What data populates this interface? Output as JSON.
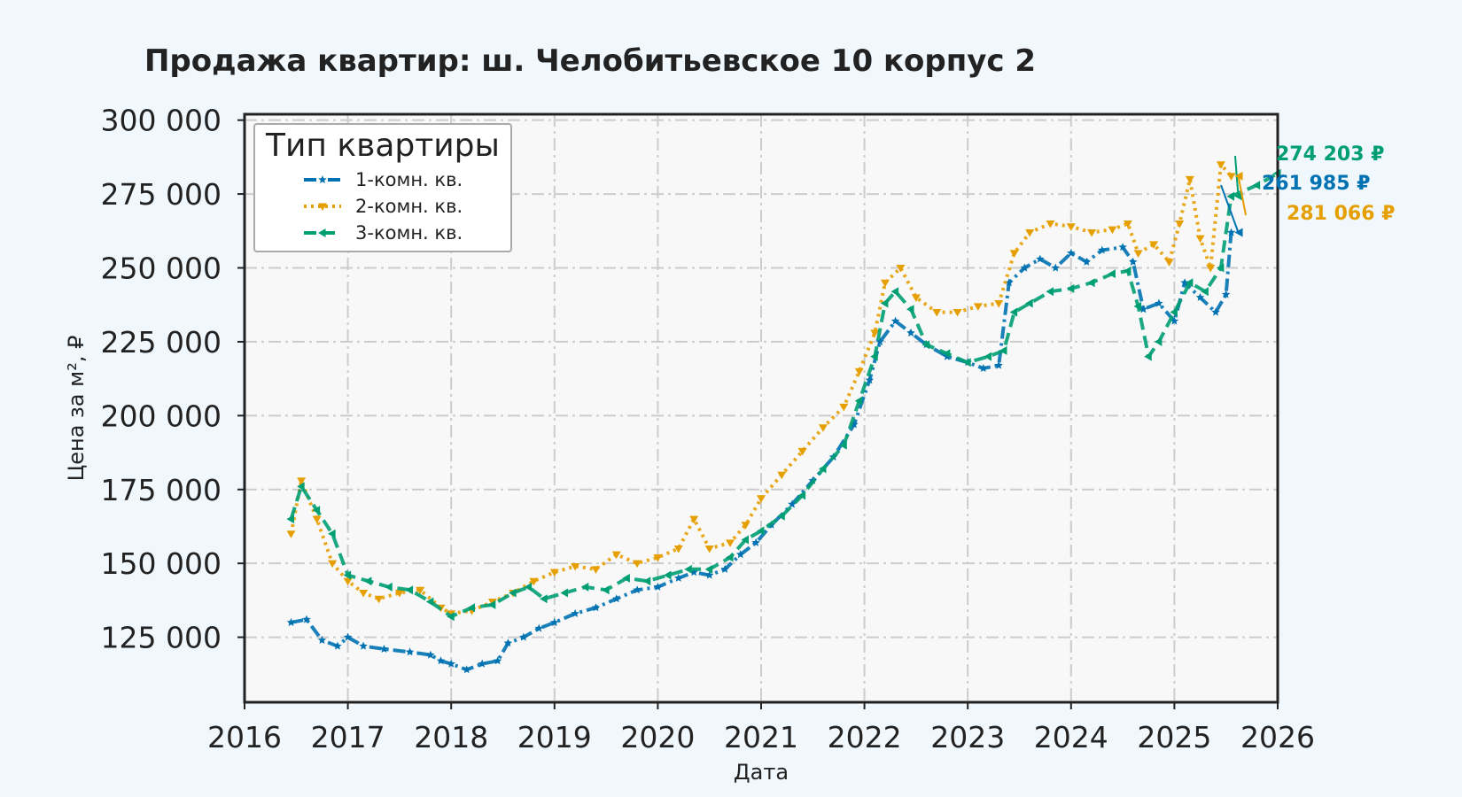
{
  "chart_data": {
    "type": "line",
    "title": "Продажа квартир: ш. Челобитьевское 10 корпус 2",
    "xlabel": "Дата",
    "ylabel": "Цена за м², ₽",
    "xlim": [
      2016.0,
      2026.0
    ],
    "ylim": [
      103000,
      302000
    ],
    "x_ticks": [
      "2016",
      "2017",
      "2018",
      "2019",
      "2020",
      "2021",
      "2022",
      "2023",
      "2024",
      "2025",
      "2026"
    ],
    "y_ticks": [
      "125 000",
      "150 000",
      "175 000",
      "200 000",
      "225 000",
      "250 000",
      "275 000",
      "300 000"
    ],
    "y_tick_values": [
      125000,
      150000,
      175000,
      200000,
      225000,
      250000,
      275000,
      300000
    ],
    "grid": true,
    "legend": {
      "title": "Тип квартиры",
      "position": "top-left"
    },
    "series": [
      {
        "name": "1-комн. кв.",
        "color": "#0072b2",
        "style": "dashdot",
        "marker": "star",
        "points": [
          [
            2016.45,
            130000
          ],
          [
            2016.6,
            131000
          ],
          [
            2016.75,
            124000
          ],
          [
            2016.9,
            122000
          ],
          [
            2017.0,
            125000
          ],
          [
            2017.15,
            122000
          ],
          [
            2017.35,
            121000
          ],
          [
            2017.6,
            120000
          ],
          [
            2017.8,
            119000
          ],
          [
            2017.9,
            117000
          ],
          [
            2018.0,
            116000
          ],
          [
            2018.15,
            114000
          ],
          [
            2018.3,
            116000
          ],
          [
            2018.45,
            117000
          ],
          [
            2018.55,
            123000
          ],
          [
            2018.7,
            125000
          ],
          [
            2018.85,
            128000
          ],
          [
            2019.0,
            130000
          ],
          [
            2019.2,
            133000
          ],
          [
            2019.4,
            135000
          ],
          [
            2019.6,
            138000
          ],
          [
            2019.8,
            141000
          ],
          [
            2020.0,
            142000
          ],
          [
            2020.2,
            145000
          ],
          [
            2020.35,
            147000
          ],
          [
            2020.5,
            146000
          ],
          [
            2020.65,
            148000
          ],
          [
            2020.8,
            153000
          ],
          [
            2020.95,
            157000
          ],
          [
            2021.1,
            163000
          ],
          [
            2021.3,
            170000
          ],
          [
            2021.5,
            178000
          ],
          [
            2021.7,
            186000
          ],
          [
            2021.9,
            197000
          ],
          [
            2022.05,
            212000
          ],
          [
            2022.15,
            225000
          ],
          [
            2022.3,
            232000
          ],
          [
            2022.45,
            228000
          ],
          [
            2022.6,
            224000
          ],
          [
            2022.8,
            220000
          ],
          [
            2023.0,
            218000
          ],
          [
            2023.15,
            216000
          ],
          [
            2023.3,
            217000
          ],
          [
            2023.4,
            245000
          ],
          [
            2023.55,
            250000
          ],
          [
            2023.7,
            253000
          ],
          [
            2023.85,
            250000
          ],
          [
            2024.0,
            255000
          ],
          [
            2024.15,
            252000
          ],
          [
            2024.3,
            256000
          ],
          [
            2024.5,
            257000
          ],
          [
            2024.6,
            252000
          ],
          [
            2024.7,
            236000
          ],
          [
            2024.85,
            238000
          ],
          [
            2025.0,
            232000
          ],
          [
            2025.1,
            245000
          ],
          [
            2025.25,
            240000
          ],
          [
            2025.4,
            235000
          ],
          [
            2025.5,
            241000
          ],
          [
            2025.55,
            261985
          ]
        ]
      },
      {
        "name": "2-комн. кв.",
        "color": "#e69f00",
        "style": "dotted",
        "marker": "triangle-down",
        "points": [
          [
            2016.45,
            160000
          ],
          [
            2016.55,
            178000
          ],
          [
            2016.7,
            165000
          ],
          [
            2016.85,
            150000
          ],
          [
            2017.0,
            144000
          ],
          [
            2017.15,
            140000
          ],
          [
            2017.3,
            138000
          ],
          [
            2017.5,
            140000
          ],
          [
            2017.7,
            141000
          ],
          [
            2017.9,
            135000
          ],
          [
            2018.0,
            133000
          ],
          [
            2018.2,
            134000
          ],
          [
            2018.4,
            137000
          ],
          [
            2018.6,
            140000
          ],
          [
            2018.8,
            144000
          ],
          [
            2019.0,
            147000
          ],
          [
            2019.2,
            149000
          ],
          [
            2019.4,
            148000
          ],
          [
            2019.6,
            153000
          ],
          [
            2019.8,
            150000
          ],
          [
            2020.0,
            152000
          ],
          [
            2020.2,
            155000
          ],
          [
            2020.35,
            165000
          ],
          [
            2020.5,
            155000
          ],
          [
            2020.7,
            157000
          ],
          [
            2020.85,
            163000
          ],
          [
            2021.0,
            172000
          ],
          [
            2021.2,
            180000
          ],
          [
            2021.4,
            188000
          ],
          [
            2021.6,
            196000
          ],
          [
            2021.8,
            203000
          ],
          [
            2021.95,
            215000
          ],
          [
            2022.1,
            228000
          ],
          [
            2022.2,
            245000
          ],
          [
            2022.35,
            250000
          ],
          [
            2022.5,
            240000
          ],
          [
            2022.7,
            235000
          ],
          [
            2022.9,
            235000
          ],
          [
            2023.1,
            237000
          ],
          [
            2023.3,
            238000
          ],
          [
            2023.45,
            255000
          ],
          [
            2023.6,
            262000
          ],
          [
            2023.8,
            265000
          ],
          [
            2024.0,
            264000
          ],
          [
            2024.2,
            262000
          ],
          [
            2024.4,
            263000
          ],
          [
            2024.55,
            265000
          ],
          [
            2024.65,
            255000
          ],
          [
            2024.8,
            258000
          ],
          [
            2024.95,
            252000
          ],
          [
            2025.05,
            265000
          ],
          [
            2025.15,
            280000
          ],
          [
            2025.25,
            260000
          ],
          [
            2025.35,
            250000
          ],
          [
            2025.45,
            285000
          ],
          [
            2025.55,
            281066
          ]
        ]
      },
      {
        "name": "3-комн. кв.",
        "color": "#009e73",
        "style": "dashed",
        "marker": "triangle-left",
        "points": [
          [
            2016.45,
            165000
          ],
          [
            2016.55,
            176000
          ],
          [
            2016.7,
            168000
          ],
          [
            2016.85,
            160000
          ],
          [
            2017.0,
            146000
          ],
          [
            2017.2,
            144000
          ],
          [
            2017.4,
            142000
          ],
          [
            2017.6,
            141000
          ],
          [
            2017.8,
            137000
          ],
          [
            2018.0,
            132000
          ],
          [
            2018.2,
            135000
          ],
          [
            2018.4,
            136000
          ],
          [
            2018.6,
            140000
          ],
          [
            2018.75,
            142000
          ],
          [
            2018.9,
            138000
          ],
          [
            2019.1,
            140000
          ],
          [
            2019.3,
            142000
          ],
          [
            2019.5,
            141000
          ],
          [
            2019.7,
            145000
          ],
          [
            2019.9,
            144000
          ],
          [
            2020.1,
            146000
          ],
          [
            2020.3,
            148000
          ],
          [
            2020.5,
            148000
          ],
          [
            2020.7,
            152000
          ],
          [
            2020.85,
            158000
          ],
          [
            2021.0,
            161000
          ],
          [
            2021.2,
            166000
          ],
          [
            2021.4,
            173000
          ],
          [
            2021.6,
            182000
          ],
          [
            2021.8,
            190000
          ],
          [
            2021.95,
            205000
          ],
          [
            2022.1,
            220000
          ],
          [
            2022.2,
            238000
          ],
          [
            2022.3,
            242000
          ],
          [
            2022.45,
            236000
          ],
          [
            2022.6,
            224000
          ],
          [
            2022.8,
            221000
          ],
          [
            2023.0,
            218000
          ],
          [
            2023.2,
            220000
          ],
          [
            2023.35,
            222000
          ],
          [
            2023.45,
            235000
          ],
          [
            2023.6,
            238000
          ],
          [
            2023.8,
            242000
          ],
          [
            2024.0,
            243000
          ],
          [
            2024.2,
            245000
          ],
          [
            2024.4,
            248000
          ],
          [
            2024.55,
            249000
          ],
          [
            2024.65,
            237000
          ],
          [
            2024.75,
            220000
          ],
          [
            2024.85,
            225000
          ],
          [
            2025.0,
            235000
          ],
          [
            2025.15,
            245000
          ],
          [
            2025.3,
            242000
          ],
          [
            2025.45,
            250000
          ],
          [
            2025.55,
            274203
          ],
          [
            2025.8,
            278000
          ],
          [
            2026.0,
            282000
          ]
        ]
      }
    ],
    "annotations": [
      {
        "text": "274 203 ₽",
        "series": "3-комн. кв.",
        "color": "#009e73"
      },
      {
        "text": "261 985 ₽",
        "series": "1-комн. кв.",
        "color": "#0072b2"
      },
      {
        "text": "281 066 ₽",
        "series": "2-комн. кв.",
        "color": "#e69f00"
      }
    ]
  }
}
